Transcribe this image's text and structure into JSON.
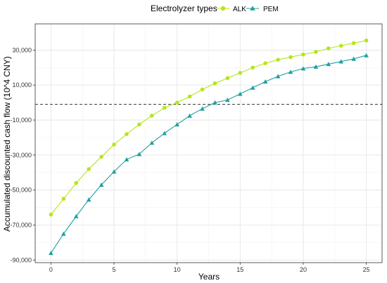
{
  "chart_data": {
    "type": "line",
    "legend": {
      "title": "Electrolyzer types",
      "position": "top"
    },
    "xlabel": "Years",
    "ylabel": "Accumulated discounted cash flow (10^4 CNY)",
    "xlim": [
      -1.25,
      26.25
    ],
    "ylim": [
      -91500,
      45000
    ],
    "x_ticks": [
      0,
      5,
      10,
      15,
      20,
      25
    ],
    "y_ticks": [
      30000,
      10000,
      -10000,
      -30000,
      -50000,
      -70000,
      -90000
    ],
    "y_tick_labels": [
      "30,000",
      "10,000",
      "-10,000",
      "-30,000",
      "-50,000",
      "-70,000",
      "-90,000"
    ],
    "x_tick_labels": [
      "0",
      "5",
      "10",
      "15",
      "20",
      "25"
    ],
    "grid": true,
    "reference_line": {
      "y": -1000,
      "style": "dashed"
    },
    "x": [
      0,
      1,
      2,
      3,
      4,
      5,
      6,
      7,
      8,
      9,
      10,
      11,
      12,
      13,
      14,
      15,
      16,
      17,
      18,
      19,
      20,
      21,
      22,
      23,
      24,
      25
    ],
    "series": [
      {
        "name": "ALK",
        "color": "#b5e61d",
        "marker": "circle",
        "values": [
          -64000,
          -55000,
          -46000,
          -38000,
          -31000,
          -24000,
          -18000,
          -12500,
          -7500,
          -3000,
          0,
          3500,
          7500,
          11000,
          14000,
          17000,
          20000,
          22500,
          24500,
          26000,
          27500,
          29000,
          31000,
          32500,
          34000,
          35500
        ]
      },
      {
        "name": "PEM",
        "color": "#20a0a0",
        "marker": "triangle",
        "values": [
          -86000,
          -75000,
          -65000,
          -55500,
          -47000,
          -39500,
          -32500,
          -29500,
          -23000,
          -17500,
          -12500,
          -7500,
          -3500,
          0,
          1500,
          5000,
          8500,
          12000,
          15000,
          17500,
          19500,
          20500,
          22000,
          23500,
          25000,
          27000
        ]
      }
    ]
  }
}
